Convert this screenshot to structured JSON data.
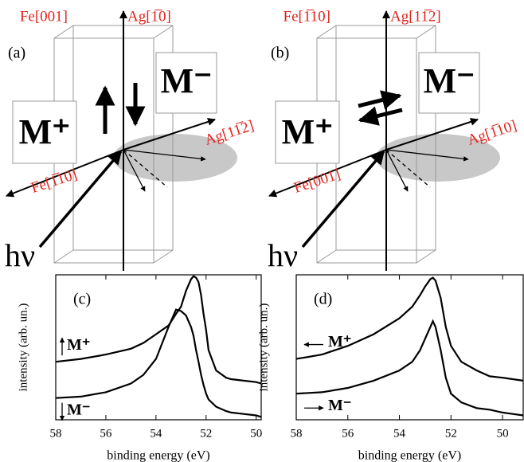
{
  "diagrams": [
    {
      "label": "(a)",
      "vertical_labels": [
        "Fe[001]",
        "Ag[1̅0]"
      ],
      "in_plane_label": "Ag[11̅2]",
      "normal_label": "Fe[1̅10]",
      "m_plus": "M⁺",
      "m_minus": "M⁻",
      "photon": "hν"
    },
    {
      "label": "(b)",
      "vertical_labels": [
        "Fe[1̅10]",
        "Ag[11̅2]"
      ],
      "in_plane_label": "Ag[1̅10]",
      "normal_label": "Fe[001]",
      "m_plus": "M⁺",
      "m_minus": "M⁻",
      "photon": "hν"
    }
  ],
  "chart_data": [
    {
      "type": "line",
      "label": "(c)",
      "x_label": "binding energy (eV)",
      "y_label": "intensity (arb. un.)",
      "x": [
        58,
        57,
        56,
        55,
        54.5,
        54,
        53.5,
        53.2,
        53,
        52.8,
        52.6,
        52.5,
        52.4,
        52.3,
        52.2,
        52.1,
        52,
        51.9,
        51.6,
        51.2,
        51,
        50.5,
        50,
        49.8
      ],
      "xlim": [
        58,
        49.8
      ],
      "xticks": [
        58,
        56,
        54,
        52,
        50
      ],
      "ylim": [
        0,
        1
      ],
      "series": [
        {
          "name": "M⁺",
          "color": "#000000",
          "values": [
            0.4,
            0.42,
            0.45,
            0.49,
            0.53,
            0.59,
            0.65,
            0.73,
            0.78,
            0.89,
            0.97,
            0.99,
            0.98,
            0.95,
            0.86,
            0.73,
            0.62,
            0.48,
            0.34,
            0.29,
            0.28,
            0.27,
            0.26,
            0.25
          ]
        },
        {
          "name": "M⁻",
          "color": "#000000",
          "values": [
            0.15,
            0.16,
            0.19,
            0.25,
            0.31,
            0.42,
            0.64,
            0.76,
            0.75,
            0.72,
            0.64,
            0.58,
            0.48,
            0.4,
            0.31,
            0.24,
            0.18,
            0.14,
            0.09,
            0.06,
            0.05,
            0.04,
            0.03,
            0.02
          ]
        }
      ]
    },
    {
      "type": "line",
      "label": "(d)",
      "x_label": "binding energy (eV)",
      "y_label": "intensity (arb. un.)",
      "x": [
        58,
        57,
        56,
        55,
        54,
        53.5,
        53.2,
        53,
        52.8,
        52.7,
        52.6,
        52.4,
        52.2,
        52,
        51.6,
        51,
        50.5,
        50,
        49.2
      ],
      "xlim": [
        58,
        49.2
      ],
      "xticks": [
        58,
        56,
        54,
        52,
        50
      ],
      "ylim": [
        0,
        1
      ],
      "series": [
        {
          "name": "M⁺",
          "color": "#000000",
          "values": [
            0.42,
            0.45,
            0.51,
            0.59,
            0.7,
            0.78,
            0.86,
            0.92,
            0.97,
            0.98,
            0.96,
            0.84,
            0.64,
            0.51,
            0.4,
            0.34,
            0.3,
            0.29,
            0.27
          ]
        },
        {
          "name": "M⁻",
          "color": "#000000",
          "values": [
            0.18,
            0.19,
            0.22,
            0.27,
            0.34,
            0.4,
            0.48,
            0.56,
            0.64,
            0.68,
            0.64,
            0.48,
            0.29,
            0.18,
            0.12,
            0.08,
            0.07,
            0.05,
            0.03
          ]
        }
      ]
    }
  ]
}
